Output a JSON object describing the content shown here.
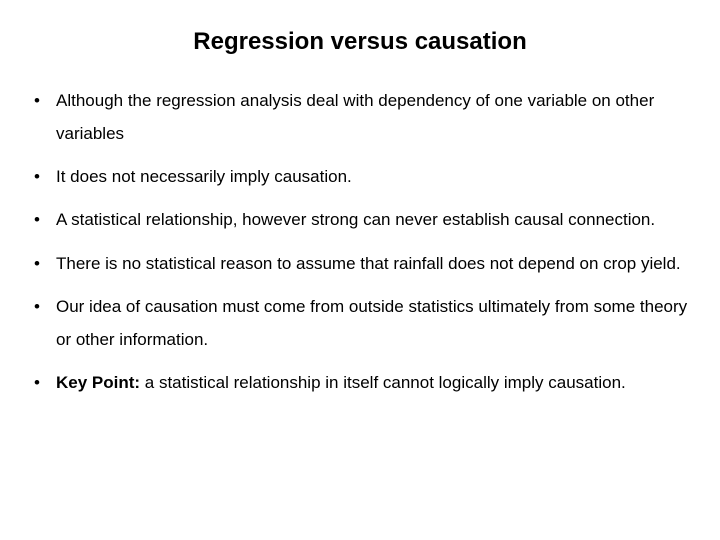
{
  "title": "Regression versus causation",
  "bullets": [
    {
      "text": "Although the regression analysis deal with dependency of one variable on other variables"
    },
    {
      "text": "It does not necessarily imply causation."
    },
    {
      "text": "A statistical relationship, however strong can never establish causal connection."
    },
    {
      "text": "There is no statistical reason to assume that rainfall does not depend on crop yield."
    },
    {
      "text": "Our idea of causation must come from outside statistics ultimately from some theory or other information."
    }
  ],
  "keypoint": {
    "label": "Key Point:",
    "text": " a statistical relationship in itself cannot logically imply causation."
  },
  "colors": {
    "background": "#ffffff",
    "text": "#000000"
  },
  "typography": {
    "title_fontsize": 24,
    "body_fontsize": 17,
    "line_height": 1.95
  }
}
